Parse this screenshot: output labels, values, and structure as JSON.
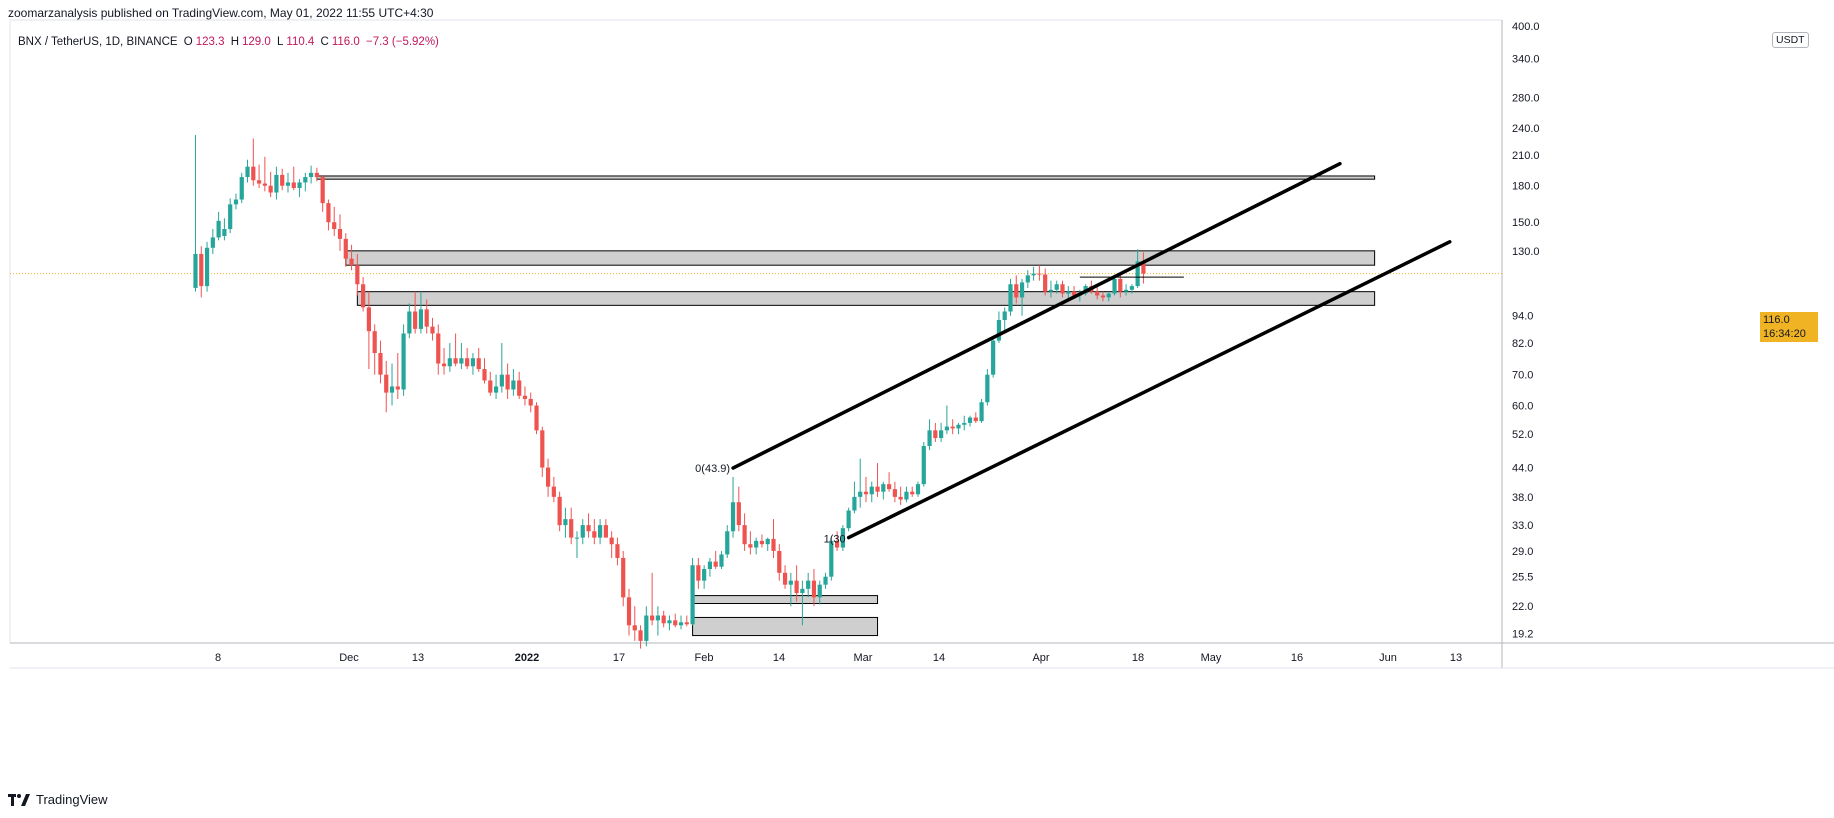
{
  "header": {
    "publish_line": "zoomarzanalysis published on TradingView.com, May 01, 2022 11:55 UTC+4:30",
    "symbol": "BNX / TetherUS, 1D, BINANCE",
    "open_label": "O",
    "open_value": "123.3",
    "high_label": "H",
    "high_value": "129.0",
    "low_label": "L",
    "low_value": "110.4",
    "close_label": "C",
    "close_value": "116.0",
    "change": "−7.3 (−5.92%)"
  },
  "footer": {
    "brand": "TradingView"
  },
  "price_axis": {
    "unit": "USDT",
    "current_price": "116.0",
    "countdown": "16:34:20"
  },
  "colors": {
    "up": "#26a69a",
    "down": "#ef5350",
    "line": "#000000",
    "zone_fill": "#cfcfcf",
    "current_price_line": "#f0b323"
  },
  "chart_data": {
    "type": "candlestick",
    "scale": "log",
    "ylim": [
      17.5,
      400
    ],
    "y_ticks": [
      400,
      340,
      280,
      240,
      210,
      180,
      150,
      130,
      116,
      94,
      82,
      70,
      60,
      52,
      44,
      38,
      33,
      29,
      25.5,
      22,
      19.2
    ],
    "y_tick_labels": [
      "400.0",
      "340.0",
      "280.0",
      "240.0",
      "210.0",
      "180.0",
      "150.0",
      "130.0",
      "116.0",
      "94.0",
      "82.0",
      "70.0",
      "60.0",
      "52.0",
      "44.0",
      "38.0",
      "33.0",
      "29.0",
      "25.5",
      "22.0",
      "19.2"
    ],
    "x_ticks": [
      {
        "label": "8",
        "bold": false
      },
      {
        "label": "Dec",
        "bold": false
      },
      {
        "label": "13",
        "bold": false
      },
      {
        "label": "2022",
        "bold": true
      },
      {
        "label": "17",
        "bold": false
      },
      {
        "label": "Feb",
        "bold": false
      },
      {
        "label": "14",
        "bold": false
      },
      {
        "label": "Mar",
        "bold": false
      },
      {
        "label": "14",
        "bold": false
      },
      {
        "label": "Apr",
        "bold": false
      },
      {
        "label": "18",
        "bold": false
      },
      {
        "label": "May",
        "bold": false
      },
      {
        "label": "16",
        "bold": false
      },
      {
        "label": "Jun",
        "bold": false
      },
      {
        "label": "13",
        "bold": false
      }
    ],
    "candles": [
      {
        "o": 108,
        "h": 232,
        "l": 106,
        "c": 128
      },
      {
        "o": 128,
        "h": 133,
        "l": 103,
        "c": 109
      },
      {
        "o": 109,
        "h": 136,
        "l": 106,
        "c": 132
      },
      {
        "o": 132,
        "h": 145,
        "l": 128,
        "c": 139
      },
      {
        "o": 139,
        "h": 158,
        "l": 137,
        "c": 151
      },
      {
        "o": 140,
        "h": 153,
        "l": 137,
        "c": 145
      },
      {
        "o": 145,
        "h": 169,
        "l": 142,
        "c": 164
      },
      {
        "o": 164,
        "h": 173,
        "l": 160,
        "c": 168
      },
      {
        "o": 168,
        "h": 192,
        "l": 165,
        "c": 188
      },
      {
        "o": 188,
        "h": 205,
        "l": 183,
        "c": 198
      },
      {
        "o": 198,
        "h": 228,
        "l": 180,
        "c": 185
      },
      {
        "o": 185,
        "h": 200,
        "l": 178,
        "c": 182
      },
      {
        "o": 182,
        "h": 208,
        "l": 175,
        "c": 180
      },
      {
        "o": 180,
        "h": 193,
        "l": 170,
        "c": 174
      },
      {
        "o": 174,
        "h": 198,
        "l": 168,
        "c": 190
      },
      {
        "o": 190,
        "h": 196,
        "l": 176,
        "c": 180
      },
      {
        "o": 180,
        "h": 192,
        "l": 174,
        "c": 183
      },
      {
        "o": 183,
        "h": 198,
        "l": 176,
        "c": 178
      },
      {
        "o": 178,
        "h": 186,
        "l": 170,
        "c": 183
      },
      {
        "o": 183,
        "h": 192,
        "l": 175,
        "c": 188
      },
      {
        "o": 188,
        "h": 199,
        "l": 182,
        "c": 192
      },
      {
        "o": 192,
        "h": 197,
        "l": 184,
        "c": 188
      },
      {
        "o": 188,
        "h": 190,
        "l": 158,
        "c": 165
      },
      {
        "o": 165,
        "h": 168,
        "l": 144,
        "c": 150
      },
      {
        "o": 150,
        "h": 162,
        "l": 140,
        "c": 145
      },
      {
        "o": 145,
        "h": 156,
        "l": 130,
        "c": 138
      },
      {
        "o": 138,
        "h": 142,
        "l": 120,
        "c": 125
      },
      {
        "o": 125,
        "h": 134,
        "l": 118,
        "c": 121
      },
      {
        "o": 121,
        "h": 128,
        "l": 104,
        "c": 110
      },
      {
        "o": 110,
        "h": 114,
        "l": 96,
        "c": 98
      },
      {
        "o": 98,
        "h": 106,
        "l": 72,
        "c": 87
      },
      {
        "o": 87,
        "h": 90,
        "l": 70,
        "c": 78
      },
      {
        "o": 78,
        "h": 83,
        "l": 67,
        "c": 70
      },
      {
        "o": 70,
        "h": 75,
        "l": 58,
        "c": 64
      },
      {
        "o": 64,
        "h": 74,
        "l": 60,
        "c": 66
      },
      {
        "o": 66,
        "h": 78,
        "l": 62,
        "c": 65
      },
      {
        "o": 65,
        "h": 90,
        "l": 63,
        "c": 86
      },
      {
        "o": 86,
        "h": 100,
        "l": 84,
        "c": 96
      },
      {
        "o": 96,
        "h": 106,
        "l": 86,
        "c": 88
      },
      {
        "o": 88,
        "h": 106,
        "l": 86,
        "c": 97
      },
      {
        "o": 97,
        "h": 102,
        "l": 86,
        "c": 89
      },
      {
        "o": 89,
        "h": 93,
        "l": 83,
        "c": 86
      },
      {
        "o": 86,
        "h": 90,
        "l": 70,
        "c": 74
      },
      {
        "o": 74,
        "h": 80,
        "l": 70,
        "c": 73
      },
      {
        "o": 73,
        "h": 82,
        "l": 71,
        "c": 76
      },
      {
        "o": 76,
        "h": 86,
        "l": 73,
        "c": 74
      },
      {
        "o": 74,
        "h": 82,
        "l": 72,
        "c": 76
      },
      {
        "o": 76,
        "h": 80,
        "l": 72,
        "c": 73
      },
      {
        "o": 73,
        "h": 78,
        "l": 70,
        "c": 76
      },
      {
        "o": 76,
        "h": 80,
        "l": 71,
        "c": 72
      },
      {
        "o": 72,
        "h": 76,
        "l": 67,
        "c": 68
      },
      {
        "o": 68,
        "h": 71,
        "l": 63,
        "c": 64
      },
      {
        "o": 64,
        "h": 70,
        "l": 62,
        "c": 66
      },
      {
        "o": 66,
        "h": 82,
        "l": 64,
        "c": 70
      },
      {
        "o": 70,
        "h": 74,
        "l": 62,
        "c": 65
      },
      {
        "o": 65,
        "h": 72,
        "l": 63,
        "c": 68
      },
      {
        "o": 68,
        "h": 71,
        "l": 62,
        "c": 63
      },
      {
        "o": 63,
        "h": 66,
        "l": 60,
        "c": 62
      },
      {
        "o": 62,
        "h": 64,
        "l": 58,
        "c": 60
      },
      {
        "o": 60,
        "h": 61,
        "l": 52,
        "c": 53
      },
      {
        "o": 53,
        "h": 54,
        "l": 42,
        "c": 44
      },
      {
        "o": 44,
        "h": 46,
        "l": 38,
        "c": 40
      },
      {
        "o": 40,
        "h": 42,
        "l": 37,
        "c": 38
      },
      {
        "o": 38,
        "h": 39,
        "l": 32,
        "c": 33
      },
      {
        "o": 33,
        "h": 36,
        "l": 31,
        "c": 34
      },
      {
        "o": 34,
        "h": 36,
        "l": 30,
        "c": 31
      },
      {
        "o": 31,
        "h": 32,
        "l": 28,
        "c": 31
      },
      {
        "o": 31,
        "h": 34,
        "l": 30,
        "c": 33
      },
      {
        "o": 33,
        "h": 35,
        "l": 31,
        "c": 32
      },
      {
        "o": 32,
        "h": 34,
        "l": 30,
        "c": 31
      },
      {
        "o": 31,
        "h": 34,
        "l": 30,
        "c": 33
      },
      {
        "o": 33,
        "h": 34,
        "l": 31,
        "c": 31
      },
      {
        "o": 31,
        "h": 32,
        "l": 28,
        "c": 30
      },
      {
        "o": 30,
        "h": 31,
        "l": 27,
        "c": 28
      },
      {
        "o": 28,
        "h": 29,
        "l": 22,
        "c": 23
      },
      {
        "o": 23,
        "h": 24,
        "l": 19,
        "c": 20
      },
      {
        "o": 20,
        "h": 22,
        "l": 18.5,
        "c": 19.5
      },
      {
        "o": 19.5,
        "h": 20,
        "l": 17.8,
        "c": 18.5
      },
      {
        "o": 18.5,
        "h": 22,
        "l": 18,
        "c": 21
      },
      {
        "o": 21,
        "h": 26,
        "l": 20,
        "c": 20.5
      },
      {
        "o": 20.5,
        "h": 22,
        "l": 19,
        "c": 21
      },
      {
        "o": 21,
        "h": 21.5,
        "l": 19.8,
        "c": 20.2
      },
      {
        "o": 20.2,
        "h": 21,
        "l": 19.5,
        "c": 20.5
      },
      {
        "o": 20.5,
        "h": 21.2,
        "l": 19.8,
        "c": 20
      },
      {
        "o": 20,
        "h": 21,
        "l": 19.6,
        "c": 20.3
      },
      {
        "o": 20.3,
        "h": 21,
        "l": 19.9,
        "c": 20.1
      },
      {
        "o": 20.1,
        "h": 28,
        "l": 20,
        "c": 27
      },
      {
        "o": 27,
        "h": 28,
        "l": 24,
        "c": 25
      },
      {
        "o": 25,
        "h": 27,
        "l": 24,
        "c": 26.5
      },
      {
        "o": 26.5,
        "h": 28,
        "l": 25.5,
        "c": 27.5
      },
      {
        "o": 27.5,
        "h": 29,
        "l": 26.5,
        "c": 26.8
      },
      {
        "o": 26.8,
        "h": 29,
        "l": 26.5,
        "c": 28.5
      },
      {
        "o": 28.5,
        "h": 33,
        "l": 28,
        "c": 32
      },
      {
        "o": 32,
        "h": 42,
        "l": 31,
        "c": 37
      },
      {
        "o": 37,
        "h": 40,
        "l": 32,
        "c": 33
      },
      {
        "o": 33,
        "h": 35,
        "l": 29,
        "c": 30
      },
      {
        "o": 30,
        "h": 32,
        "l": 28.5,
        "c": 29.5
      },
      {
        "o": 29.5,
        "h": 31,
        "l": 28.5,
        "c": 30.5
      },
      {
        "o": 30.5,
        "h": 31.5,
        "l": 29.5,
        "c": 30
      },
      {
        "o": 30,
        "h": 31,
        "l": 29,
        "c": 30.8
      },
      {
        "o": 30.8,
        "h": 34,
        "l": 28,
        "c": 29
      },
      {
        "o": 29,
        "h": 30,
        "l": 25,
        "c": 26
      },
      {
        "o": 26,
        "h": 27,
        "l": 24,
        "c": 24.5
      },
      {
        "o": 24.5,
        "h": 26,
        "l": 22,
        "c": 25
      },
      {
        "o": 25,
        "h": 27,
        "l": 22.5,
        "c": 23.5
      },
      {
        "o": 23.5,
        "h": 25,
        "l": 20,
        "c": 24
      },
      {
        "o": 24,
        "h": 26,
        "l": 23,
        "c": 25
      },
      {
        "o": 25,
        "h": 26.5,
        "l": 22,
        "c": 23
      },
      {
        "o": 23,
        "h": 25,
        "l": 22.2,
        "c": 24.5
      },
      {
        "o": 24.5,
        "h": 26,
        "l": 24,
        "c": 25.5
      },
      {
        "o": 25.5,
        "h": 31,
        "l": 25,
        "c": 30.5
      },
      {
        "o": 30.5,
        "h": 32,
        "l": 29,
        "c": 29.5
      },
      {
        "o": 29.5,
        "h": 33,
        "l": 29,
        "c": 32.5
      },
      {
        "o": 32.5,
        "h": 36,
        "l": 32,
        "c": 35.5
      },
      {
        "o": 35.5,
        "h": 41,
        "l": 35,
        "c": 38
      },
      {
        "o": 38,
        "h": 46,
        "l": 36,
        "c": 39
      },
      {
        "o": 39,
        "h": 42,
        "l": 37,
        "c": 38.5
      },
      {
        "o": 38.5,
        "h": 41,
        "l": 37,
        "c": 40
      },
      {
        "o": 40,
        "h": 45,
        "l": 38,
        "c": 39
      },
      {
        "o": 39,
        "h": 41,
        "l": 37.5,
        "c": 40.5
      },
      {
        "o": 40.5,
        "h": 43,
        "l": 39,
        "c": 39.5
      },
      {
        "o": 39.5,
        "h": 41,
        "l": 37,
        "c": 38
      },
      {
        "o": 38,
        "h": 40,
        "l": 36.5,
        "c": 37.5
      },
      {
        "o": 37.5,
        "h": 40,
        "l": 37,
        "c": 39
      },
      {
        "o": 39,
        "h": 40,
        "l": 38,
        "c": 38.5
      },
      {
        "o": 38.5,
        "h": 41,
        "l": 38,
        "c": 40.5
      },
      {
        "o": 40.5,
        "h": 50,
        "l": 40,
        "c": 49
      },
      {
        "o": 49,
        "h": 56,
        "l": 48,
        "c": 53
      },
      {
        "o": 53,
        "h": 55,
        "l": 50,
        "c": 51
      },
      {
        "o": 51,
        "h": 55,
        "l": 50,
        "c": 53
      },
      {
        "o": 53,
        "h": 60,
        "l": 52,
        "c": 54
      },
      {
        "o": 54,
        "h": 56,
        "l": 52,
        "c": 53.5
      },
      {
        "o": 53.5,
        "h": 55,
        "l": 52,
        "c": 54.5
      },
      {
        "o": 54.5,
        "h": 57,
        "l": 53,
        "c": 55
      },
      {
        "o": 55,
        "h": 57,
        "l": 54,
        "c": 56.5
      },
      {
        "o": 56.5,
        "h": 58,
        "l": 55,
        "c": 55.5
      },
      {
        "o": 55.5,
        "h": 62,
        "l": 55,
        "c": 61
      },
      {
        "o": 61,
        "h": 72,
        "l": 60,
        "c": 70
      },
      {
        "o": 70,
        "h": 85,
        "l": 69,
        "c": 83
      },
      {
        "o": 83,
        "h": 96,
        "l": 82,
        "c": 92
      },
      {
        "o": 92,
        "h": 98,
        "l": 86,
        "c": 96
      },
      {
        "o": 96,
        "h": 113,
        "l": 94,
        "c": 110
      },
      {
        "o": 110,
        "h": 115,
        "l": 100,
        "c": 103
      },
      {
        "o": 103,
        "h": 113,
        "l": 94,
        "c": 111
      },
      {
        "o": 111,
        "h": 118,
        "l": 108,
        "c": 115
      },
      {
        "o": 115,
        "h": 120,
        "l": 112,
        "c": 116
      },
      {
        "o": 116,
        "h": 121,
        "l": 112,
        "c": 115.5
      },
      {
        "o": 115.5,
        "h": 119,
        "l": 104,
        "c": 106
      },
      {
        "o": 106,
        "h": 112,
        "l": 103,
        "c": 107
      },
      {
        "o": 107,
        "h": 112,
        "l": 105,
        "c": 110
      },
      {
        "o": 110,
        "h": 112,
        "l": 103,
        "c": 105
      },
      {
        "o": 105,
        "h": 109,
        "l": 102,
        "c": 106
      },
      {
        "o": 106,
        "h": 109,
        "l": 103,
        "c": 104
      },
      {
        "o": 104,
        "h": 107,
        "l": 101,
        "c": 105
      },
      {
        "o": 105,
        "h": 110,
        "l": 104,
        "c": 109
      },
      {
        "o": 109,
        "h": 112,
        "l": 105,
        "c": 106
      },
      {
        "o": 106,
        "h": 109,
        "l": 102,
        "c": 104
      },
      {
        "o": 104,
        "h": 106,
        "l": 101,
        "c": 103
      },
      {
        "o": 103,
        "h": 106,
        "l": 101,
        "c": 105
      },
      {
        "o": 105,
        "h": 114,
        "l": 104,
        "c": 113
      },
      {
        "o": 113,
        "h": 115,
        "l": 103,
        "c": 106
      },
      {
        "o": 106,
        "h": 110,
        "l": 104,
        "c": 107
      },
      {
        "o": 107,
        "h": 110,
        "l": 105,
        "c": 109
      },
      {
        "o": 109,
        "h": 131,
        "l": 108,
        "c": 123.3
      },
      {
        "o": 123.3,
        "h": 129,
        "l": 110.4,
        "c": 116
      }
    ],
    "zones": [
      {
        "start_index": 21,
        "end_date_index": 204,
        "low": 186,
        "high": 189
      },
      {
        "start_index": 26,
        "end_date_index": 204,
        "low": 121,
        "high": 130
      },
      {
        "start_index": 28,
        "end_date_index": 204,
        "low": 99,
        "high": 106
      },
      {
        "start_index": 86,
        "end_date_index": 118,
        "low": 22.3,
        "high": 23.2
      },
      {
        "start_index": 86,
        "end_date_index": 118,
        "low": 19.0,
        "high": 20.8
      }
    ],
    "trendlines": [
      {
        "i1": 93,
        "p1": 43.9,
        "i2": 198,
        "p2": 201
      },
      {
        "i1": 113,
        "p1": 31,
        "i2": 217,
        "p2": 136
      }
    ],
    "fib_labels": [
      {
        "text": "0(43.9)",
        "index": 93,
        "price": 43.9
      },
      {
        "text": "1(30",
        "index": 113,
        "price": 30.9
      }
    ],
    "small_range_line": {
      "i1": 153,
      "i2": 171,
      "price": 114
    },
    "current_price": 116
  }
}
